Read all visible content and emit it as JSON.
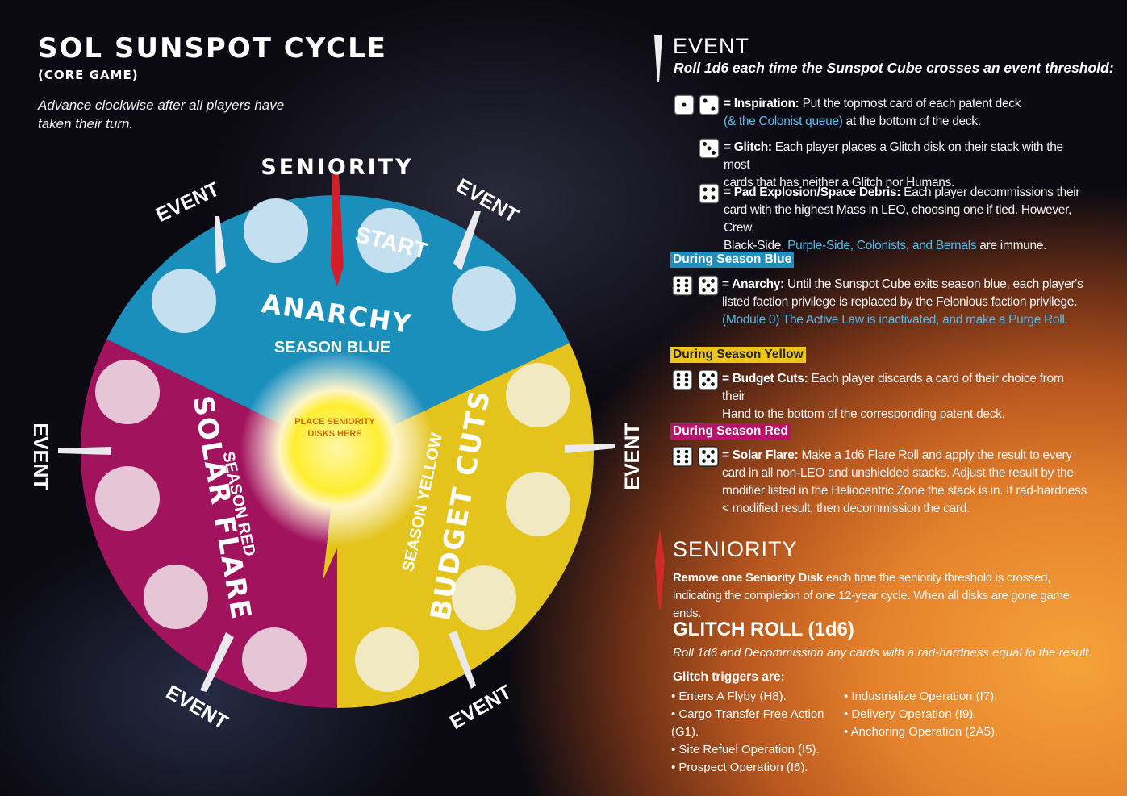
{
  "header": {
    "title": "SOL SUNSPOT CYCLE",
    "subtitle": "(CORE GAME)",
    "instruction": "Advance clockwise after all players have taken their turn."
  },
  "wheel": {
    "seniority_label": "SENIORITY",
    "event_label": "EVENT",
    "start_label": "START",
    "center_label": "PLACE SENIORITY DISKS HERE",
    "seasons": [
      {
        "name": "ANARCHY",
        "season": "SEASON BLUE",
        "color": "#1a90bd"
      },
      {
        "name": "BUDGET CUTS",
        "season": "SEASON YELLOW",
        "color": "#e8c51b"
      },
      {
        "name": "SOLAR FLARE",
        "season": "SEASON RED",
        "color": "#a8135f"
      }
    ]
  },
  "event_section": {
    "title": "EVENT",
    "subtitle": "Roll 1d6 each time the Sunspot Cube crosses an event threshold:",
    "inspiration": {
      "label": "= Inspiration:",
      "text1": "Put the topmost card of each patent deck",
      "text2_blue": "(& the Colonist queue)",
      "text2_rest": " at the bottom of the deck."
    },
    "glitch": {
      "label": "= Glitch:",
      "text1": "Each player places a Glitch disk on their stack with the most",
      "text2": "cards that has neither a Glitch nor Humans."
    },
    "pad": {
      "label": "= Pad Explosion/Space Debris:",
      "text1": "Each player decommissions their",
      "text2": "card with the highest Mass in LEO, choosing one if tied. However, Crew,",
      "text3a": "Black-Side, ",
      "text3_blue": "Purple-Side, Colonists, and Bernals",
      "text3b": " are immune."
    },
    "season_blue": {
      "tag": "During Season Blue",
      "label": "= Anarchy:",
      "text1": "Until the Sunspot Cube exits season blue, each player's",
      "text2": "listed faction privilege is replaced by the Felonious faction privilege.",
      "text3_blue": "(Module 0) The Active Law is inactivated, and make a Purge Roll."
    },
    "season_yellow": {
      "tag": "During Season Yellow",
      "label": "= Budget Cuts:",
      "text1": "Each player discards a card of their choice from their",
      "text2": "Hand to the bottom of the corresponding patent deck."
    },
    "season_red": {
      "tag": "During  Season Red",
      "label": "= Solar Flare:",
      "text1": "Make a 1d6 Flare Roll and apply the result to every",
      "text2": "card in all non-LEO and unshielded stacks. Adjust the result by the",
      "text3": "modifier listed in the Heliocentric Zone the stack is in.  If rad-hardness",
      "text4": "< modified result, then decommission the card."
    }
  },
  "seniority_section": {
    "title": "SENIORITY",
    "bold": "Remove one Seniority Disk",
    "text1": " each time the seniority threshold is crossed,",
    "text2": "indicating the completion of one 12-year cycle. When all disks are gone game ends."
  },
  "glitch_section": {
    "title": "GLITCH ROLL (1d6)",
    "subtitle": "Roll 1d6 and Decommission any cards with a rad-hardness equal to the result.",
    "triggers_label": "Glitch triggers are:",
    "col1": [
      "• Enters A Flyby (H8).",
      "• Cargo Transfer Free Action (G1).",
      "• Site Refuel Operation (I5).",
      "• Prospect Operation (I6)."
    ],
    "col2": [
      "• Industrialize Operation (I7).",
      "• Delivery Operation (I9).",
      "• Anchoring Operation (2A5)."
    ]
  }
}
